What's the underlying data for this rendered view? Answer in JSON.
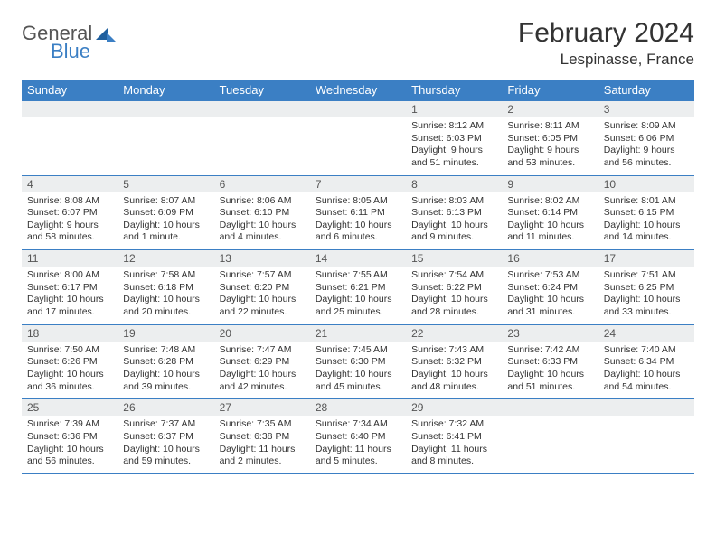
{
  "logo": {
    "general": "General",
    "blue": "Blue"
  },
  "title": "February 2024",
  "location": "Lespinasse, France",
  "colors": {
    "header_bg": "#3b7fc4",
    "header_text": "#ffffff",
    "daynum_bg": "#eceeef",
    "border": "#3b7fc4",
    "text": "#333333"
  },
  "weekdays": [
    "Sunday",
    "Monday",
    "Tuesday",
    "Wednesday",
    "Thursday",
    "Friday",
    "Saturday"
  ],
  "weeks": [
    [
      {
        "empty": true
      },
      {
        "empty": true
      },
      {
        "empty": true
      },
      {
        "empty": true
      },
      {
        "day": "1",
        "sunrise": "Sunrise: 8:12 AM",
        "sunset": "Sunset: 6:03 PM",
        "daylight": "Daylight: 9 hours and 51 minutes."
      },
      {
        "day": "2",
        "sunrise": "Sunrise: 8:11 AM",
        "sunset": "Sunset: 6:05 PM",
        "daylight": "Daylight: 9 hours and 53 minutes."
      },
      {
        "day": "3",
        "sunrise": "Sunrise: 8:09 AM",
        "sunset": "Sunset: 6:06 PM",
        "daylight": "Daylight: 9 hours and 56 minutes."
      }
    ],
    [
      {
        "day": "4",
        "sunrise": "Sunrise: 8:08 AM",
        "sunset": "Sunset: 6:07 PM",
        "daylight": "Daylight: 9 hours and 58 minutes."
      },
      {
        "day": "5",
        "sunrise": "Sunrise: 8:07 AM",
        "sunset": "Sunset: 6:09 PM",
        "daylight": "Daylight: 10 hours and 1 minute."
      },
      {
        "day": "6",
        "sunrise": "Sunrise: 8:06 AM",
        "sunset": "Sunset: 6:10 PM",
        "daylight": "Daylight: 10 hours and 4 minutes."
      },
      {
        "day": "7",
        "sunrise": "Sunrise: 8:05 AM",
        "sunset": "Sunset: 6:11 PM",
        "daylight": "Daylight: 10 hours and 6 minutes."
      },
      {
        "day": "8",
        "sunrise": "Sunrise: 8:03 AM",
        "sunset": "Sunset: 6:13 PM",
        "daylight": "Daylight: 10 hours and 9 minutes."
      },
      {
        "day": "9",
        "sunrise": "Sunrise: 8:02 AM",
        "sunset": "Sunset: 6:14 PM",
        "daylight": "Daylight: 10 hours and 11 minutes."
      },
      {
        "day": "10",
        "sunrise": "Sunrise: 8:01 AM",
        "sunset": "Sunset: 6:15 PM",
        "daylight": "Daylight: 10 hours and 14 minutes."
      }
    ],
    [
      {
        "day": "11",
        "sunrise": "Sunrise: 8:00 AM",
        "sunset": "Sunset: 6:17 PM",
        "daylight": "Daylight: 10 hours and 17 minutes."
      },
      {
        "day": "12",
        "sunrise": "Sunrise: 7:58 AM",
        "sunset": "Sunset: 6:18 PM",
        "daylight": "Daylight: 10 hours and 20 minutes."
      },
      {
        "day": "13",
        "sunrise": "Sunrise: 7:57 AM",
        "sunset": "Sunset: 6:20 PM",
        "daylight": "Daylight: 10 hours and 22 minutes."
      },
      {
        "day": "14",
        "sunrise": "Sunrise: 7:55 AM",
        "sunset": "Sunset: 6:21 PM",
        "daylight": "Daylight: 10 hours and 25 minutes."
      },
      {
        "day": "15",
        "sunrise": "Sunrise: 7:54 AM",
        "sunset": "Sunset: 6:22 PM",
        "daylight": "Daylight: 10 hours and 28 minutes."
      },
      {
        "day": "16",
        "sunrise": "Sunrise: 7:53 AM",
        "sunset": "Sunset: 6:24 PM",
        "daylight": "Daylight: 10 hours and 31 minutes."
      },
      {
        "day": "17",
        "sunrise": "Sunrise: 7:51 AM",
        "sunset": "Sunset: 6:25 PM",
        "daylight": "Daylight: 10 hours and 33 minutes."
      }
    ],
    [
      {
        "day": "18",
        "sunrise": "Sunrise: 7:50 AM",
        "sunset": "Sunset: 6:26 PM",
        "daylight": "Daylight: 10 hours and 36 minutes."
      },
      {
        "day": "19",
        "sunrise": "Sunrise: 7:48 AM",
        "sunset": "Sunset: 6:28 PM",
        "daylight": "Daylight: 10 hours and 39 minutes."
      },
      {
        "day": "20",
        "sunrise": "Sunrise: 7:47 AM",
        "sunset": "Sunset: 6:29 PM",
        "daylight": "Daylight: 10 hours and 42 minutes."
      },
      {
        "day": "21",
        "sunrise": "Sunrise: 7:45 AM",
        "sunset": "Sunset: 6:30 PM",
        "daylight": "Daylight: 10 hours and 45 minutes."
      },
      {
        "day": "22",
        "sunrise": "Sunrise: 7:43 AM",
        "sunset": "Sunset: 6:32 PM",
        "daylight": "Daylight: 10 hours and 48 minutes."
      },
      {
        "day": "23",
        "sunrise": "Sunrise: 7:42 AM",
        "sunset": "Sunset: 6:33 PM",
        "daylight": "Daylight: 10 hours and 51 minutes."
      },
      {
        "day": "24",
        "sunrise": "Sunrise: 7:40 AM",
        "sunset": "Sunset: 6:34 PM",
        "daylight": "Daylight: 10 hours and 54 minutes."
      }
    ],
    [
      {
        "day": "25",
        "sunrise": "Sunrise: 7:39 AM",
        "sunset": "Sunset: 6:36 PM",
        "daylight": "Daylight: 10 hours and 56 minutes."
      },
      {
        "day": "26",
        "sunrise": "Sunrise: 7:37 AM",
        "sunset": "Sunset: 6:37 PM",
        "daylight": "Daylight: 10 hours and 59 minutes."
      },
      {
        "day": "27",
        "sunrise": "Sunrise: 7:35 AM",
        "sunset": "Sunset: 6:38 PM",
        "daylight": "Daylight: 11 hours and 2 minutes."
      },
      {
        "day": "28",
        "sunrise": "Sunrise: 7:34 AM",
        "sunset": "Sunset: 6:40 PM",
        "daylight": "Daylight: 11 hours and 5 minutes."
      },
      {
        "day": "29",
        "sunrise": "Sunrise: 7:32 AM",
        "sunset": "Sunset: 6:41 PM",
        "daylight": "Daylight: 11 hours and 8 minutes."
      },
      {
        "empty": true
      },
      {
        "empty": true
      }
    ]
  ]
}
